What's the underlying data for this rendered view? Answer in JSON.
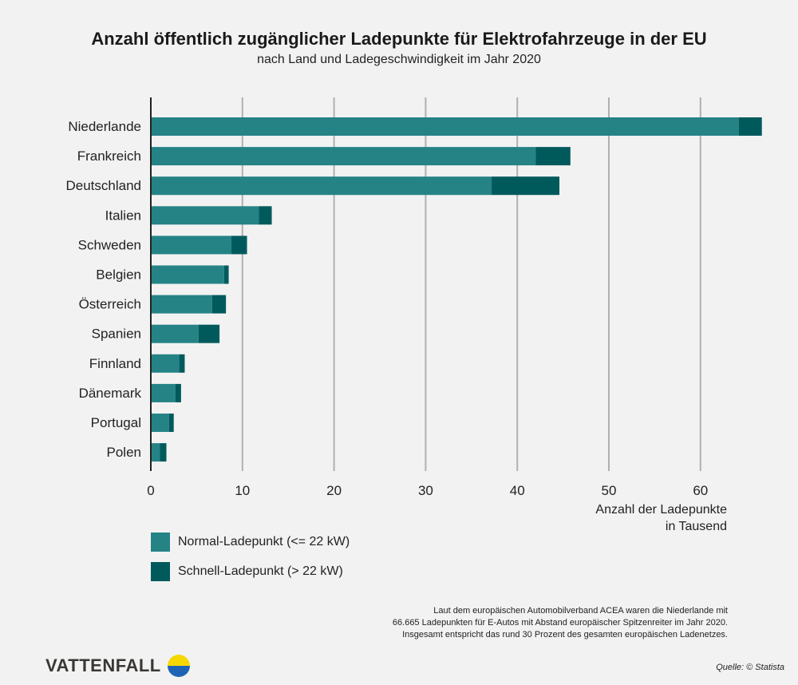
{
  "chart_data": {
    "type": "bar",
    "orientation": "horizontal",
    "stacked": true,
    "title": "Anzahl öffentlich zugänglicher Ladepunkte für Elektrofahrzeuge in der EU",
    "subtitle": "nach Land und Ladegeschwindigkeit im Jahr 2020",
    "xlabel": [
      "Anzahl der Ladepunkte",
      "in Tausend"
    ],
    "xlim": [
      0,
      70
    ],
    "xticks": [
      0,
      10,
      20,
      30,
      40,
      50,
      60
    ],
    "grid": true,
    "categories": [
      "Niederlande",
      "Frankreich",
      "Deutschland",
      "Italien",
      "Schweden",
      "Belgien",
      "Österreich",
      "Spanien",
      "Finnland",
      "Dänemark",
      "Portugal",
      "Polen"
    ],
    "series": [
      {
        "name": "Normal-Ladepunkt (<= 22 kW)",
        "color": "#258386",
        "values": [
          64.2,
          42.0,
          37.2,
          11.8,
          8.8,
          8.0,
          6.7,
          5.2,
          3.1,
          2.7,
          2.0,
          1.0
        ]
      },
      {
        "name": "Schnell-Ladepunkt (> 22 kW)",
        "color": "#005a5c",
        "values": [
          2.5,
          3.8,
          7.4,
          1.4,
          1.7,
          0.5,
          1.5,
          2.3,
          0.6,
          0.6,
          0.5,
          0.7
        ]
      }
    ],
    "legend_position": "bottom-left"
  },
  "note": [
    "Laut dem europäischen Automobilverband ACEA waren die Niederlande mit",
    "66.665 Ladepunkten für E-Autos mit Abstand europäischer Spitzenreiter im Jahr 2020.",
    "Insgesamt entspricht das rund 30 Prozent des gesamten europäischen Ladenetzes."
  ],
  "source": "Quelle: © Statista",
  "logo": "VATTENFALL",
  "colors": {
    "background": "#f2f2f2",
    "grid": "#b0b0b0",
    "logo_yellow": "#f5d800",
    "logo_blue": "#1e64b4"
  }
}
